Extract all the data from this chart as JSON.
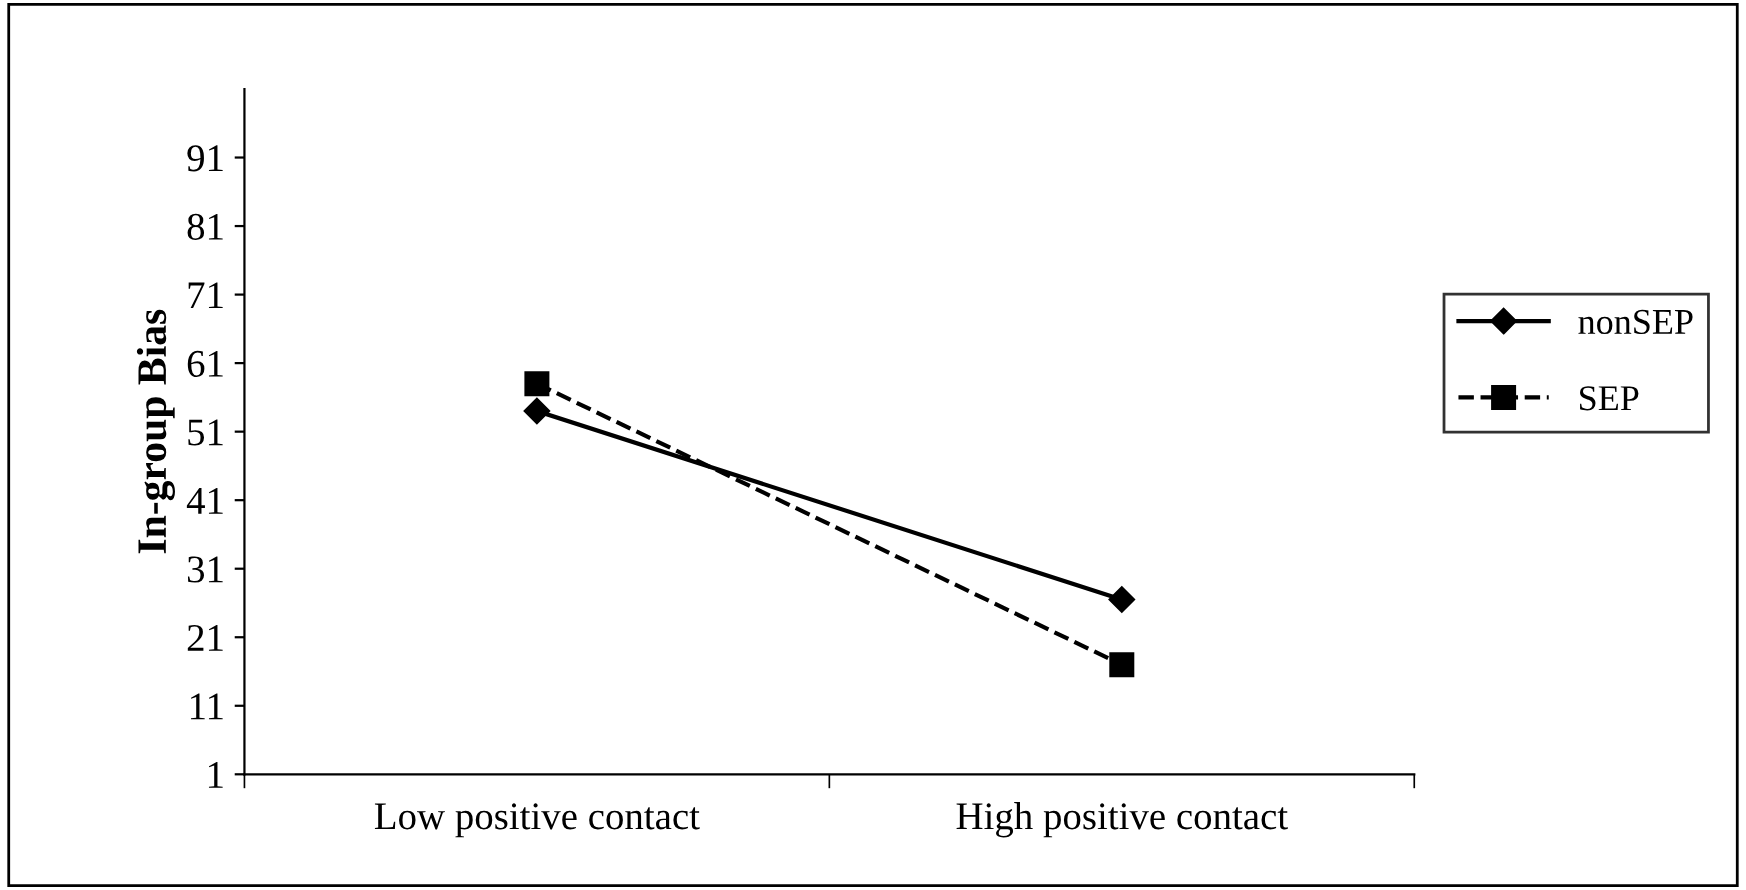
{
  "chart_data": {
    "type": "line",
    "ylabel": "In-group Bias",
    "categories": [
      "Low positive contact",
      "High positive contact"
    ],
    "series": [
      {
        "name": "nonSEP",
        "color": "#000000",
        "values": [
          54,
          26.5
        ],
        "marker": "diamond",
        "line_style": "solid"
      },
      {
        "name": "SEP",
        "color": "#000000",
        "values": [
          58,
          17
        ],
        "marker": "square",
        "line_style": "dashed"
      }
    ],
    "ylim": [
      1,
      101
    ],
    "yticks": [
      1,
      11,
      21,
      31,
      41,
      51,
      61,
      71,
      81,
      91
    ],
    "grid": false,
    "legend": "right"
  }
}
